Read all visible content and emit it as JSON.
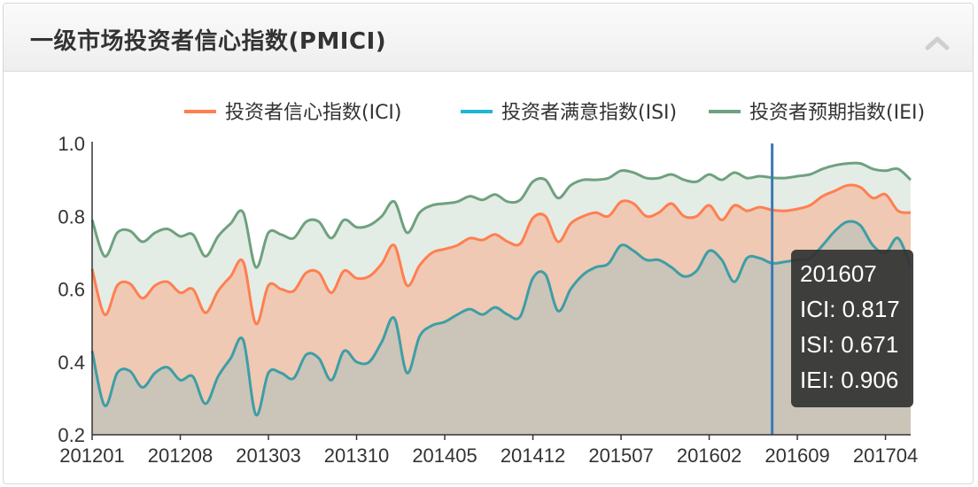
{
  "header": {
    "title": "一级市场投资者信心指数(PMICI)",
    "collapse_icon": "chevron-up-icon"
  },
  "colors": {
    "ici": "#ff7f50",
    "isi": "#1fb5d6",
    "iei": "#6fa17f",
    "ici_fill": "#efc9b3",
    "isi_fill": "#cbc4b8",
    "iei_fill": "#e4ece6",
    "marker_line": "#3a7ab8",
    "axis_text": "#333333"
  },
  "tooltip": {
    "period": "201607",
    "ici": "ICI: 0.817",
    "isi": "ISI: 0.671",
    "iei": "IEI: 0.906"
  },
  "chart_data": {
    "type": "area",
    "title": "",
    "xlabel": "",
    "ylabel": "",
    "ylim": [
      0.2,
      1.0
    ],
    "yticks": [
      "0.2",
      "0.4",
      "0.6",
      "0.8",
      "1.0"
    ],
    "xticks": [
      "201201",
      "201208",
      "201303",
      "201310",
      "201405",
      "201412",
      "201507",
      "201602",
      "201609",
      "201704"
    ],
    "grid": false,
    "legend_position": "top-right",
    "highlight_period": "201607",
    "x": [
      "201201",
      "201202",
      "201203",
      "201204",
      "201205",
      "201206",
      "201207",
      "201208",
      "201209",
      "201210",
      "201211",
      "201212",
      "201301",
      "201302",
      "201303",
      "201304",
      "201305",
      "201306",
      "201307",
      "201308",
      "201309",
      "201310",
      "201311",
      "201312",
      "201401",
      "201402",
      "201403",
      "201404",
      "201405",
      "201406",
      "201407",
      "201408",
      "201409",
      "201410",
      "201411",
      "201412",
      "201501",
      "201502",
      "201503",
      "201504",
      "201505",
      "201506",
      "201507",
      "201508",
      "201509",
      "201510",
      "201511",
      "201512",
      "201601",
      "201602",
      "201603",
      "201604",
      "201605",
      "201606",
      "201607",
      "201608",
      "201609",
      "201610",
      "201611",
      "201612",
      "201701",
      "201702",
      "201703",
      "201704",
      "201705",
      "201706"
    ],
    "series": [
      {
        "name": "投资者信心指数(ICI)",
        "values": [
          0.655,
          0.53,
          0.61,
          0.615,
          0.575,
          0.61,
          0.62,
          0.59,
          0.6,
          0.535,
          0.595,
          0.635,
          0.675,
          0.505,
          0.61,
          0.6,
          0.595,
          0.645,
          0.645,
          0.59,
          0.65,
          0.63,
          0.635,
          0.67,
          0.72,
          0.61,
          0.665,
          0.7,
          0.71,
          0.72,
          0.74,
          0.735,
          0.75,
          0.73,
          0.725,
          0.795,
          0.8,
          0.73,
          0.78,
          0.8,
          0.81,
          0.8,
          0.84,
          0.835,
          0.8,
          0.81,
          0.835,
          0.8,
          0.8,
          0.83,
          0.79,
          0.83,
          0.815,
          0.825,
          0.817,
          0.815,
          0.82,
          0.83,
          0.855,
          0.87,
          0.885,
          0.88,
          0.85,
          0.86,
          0.815,
          0.81
        ]
      },
      {
        "name": "投资者满意指数(ISI)",
        "values": [
          0.43,
          0.28,
          0.37,
          0.375,
          0.33,
          0.37,
          0.385,
          0.35,
          0.36,
          0.285,
          0.36,
          0.41,
          0.46,
          0.255,
          0.37,
          0.37,
          0.355,
          0.42,
          0.41,
          0.35,
          0.43,
          0.4,
          0.4,
          0.455,
          0.52,
          0.37,
          0.47,
          0.5,
          0.51,
          0.53,
          0.545,
          0.53,
          0.55,
          0.53,
          0.525,
          0.63,
          0.64,
          0.54,
          0.6,
          0.64,
          0.66,
          0.67,
          0.72,
          0.705,
          0.68,
          0.68,
          0.66,
          0.635,
          0.65,
          0.705,
          0.68,
          0.62,
          0.685,
          0.685,
          0.671,
          0.675,
          0.68,
          0.685,
          0.72,
          0.76,
          0.785,
          0.775,
          0.72,
          0.7,
          0.74,
          0.66
        ]
      },
      {
        "name": "投资者预期指数(IEI)",
        "values": [
          0.79,
          0.69,
          0.755,
          0.76,
          0.73,
          0.755,
          0.765,
          0.745,
          0.75,
          0.69,
          0.745,
          0.78,
          0.81,
          0.66,
          0.755,
          0.75,
          0.74,
          0.785,
          0.785,
          0.74,
          0.79,
          0.77,
          0.775,
          0.8,
          0.84,
          0.755,
          0.81,
          0.83,
          0.835,
          0.84,
          0.855,
          0.845,
          0.86,
          0.84,
          0.845,
          0.895,
          0.9,
          0.85,
          0.885,
          0.9,
          0.9,
          0.905,
          0.925,
          0.92,
          0.905,
          0.905,
          0.915,
          0.9,
          0.895,
          0.915,
          0.9,
          0.92,
          0.905,
          0.91,
          0.906,
          0.905,
          0.91,
          0.915,
          0.93,
          0.94,
          0.945,
          0.945,
          0.93,
          0.925,
          0.93,
          0.9
        ]
      }
    ]
  }
}
